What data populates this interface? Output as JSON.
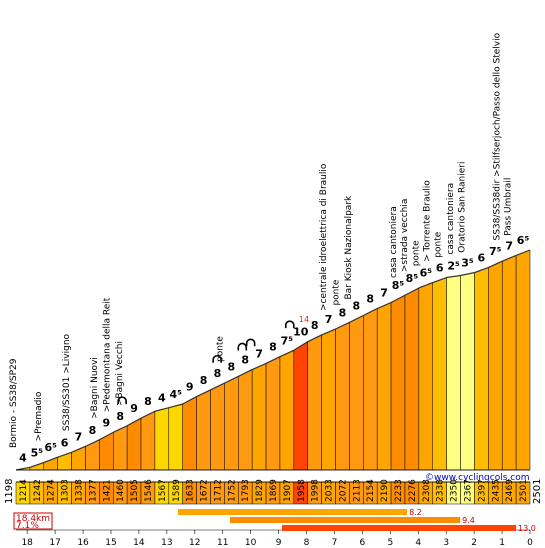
{
  "chart_data": {
    "type": "area",
    "title": "",
    "xlabel": "",
    "ylabel": "",
    "x_unit": "km",
    "xlim": [
      18.4,
      0
    ],
    "ylim": [
      1198,
      2501
    ],
    "start_elevation": "1198",
    "end_elevation": "2501",
    "summary": {
      "distance": "18.4km",
      "average_gradient": "7.1%"
    },
    "website": "©www.cyclingcols.com",
    "km_ticks": [
      "18",
      "17",
      "16",
      "15",
      "14",
      "13",
      "12",
      "11",
      "10",
      "9",
      "8",
      "7",
      "6",
      "5",
      "4",
      "3",
      "2",
      "1",
      "0"
    ],
    "segments": [
      {
        "elev_end": "1214",
        "grad": "4"
      },
      {
        "elev_end": "1242",
        "grad": "5⁵"
      },
      {
        "elev_end": "1274",
        "grad": "6⁵"
      },
      {
        "elev_end": "1303",
        "grad": "6"
      },
      {
        "elev_end": "1338",
        "grad": "7"
      },
      {
        "elev_end": "1377",
        "grad": "8"
      },
      {
        "elev_end": "1421",
        "grad": "9"
      },
      {
        "elev_end": "1460",
        "grad": "8"
      },
      {
        "elev_end": "1505",
        "grad": "9"
      },
      {
        "elev_end": "1546",
        "grad": "8"
      },
      {
        "elev_end": "1567",
        "grad": "4"
      },
      {
        "elev_end": "1589",
        "grad": "4⁵"
      },
      {
        "elev_end": "1633",
        "grad": "9"
      },
      {
        "elev_end": "1672",
        "grad": "8"
      },
      {
        "elev_end": "1712",
        "grad": "8"
      },
      {
        "elev_end": "1752",
        "grad": "8"
      },
      {
        "elev_end": "1793",
        "grad": "8"
      },
      {
        "elev_end": "1829",
        "grad": "7"
      },
      {
        "elev_end": "1869",
        "grad": "8"
      },
      {
        "elev_end": "1907",
        "grad": "7⁵"
      },
      {
        "elev_end": "1958",
        "grad": "10"
      },
      {
        "elev_end": "1998",
        "grad": "8"
      },
      {
        "elev_end": "2033",
        "grad": "7"
      },
      {
        "elev_end": "2072",
        "grad": "8"
      },
      {
        "elev_end": "2113",
        "grad": "8"
      },
      {
        "elev_end": "2154",
        "grad": "8"
      },
      {
        "elev_end": "2190",
        "grad": "7"
      },
      {
        "elev_end": "2233",
        "grad": "8⁵"
      },
      {
        "elev_end": "2276",
        "grad": "8⁵"
      },
      {
        "elev_end": "2308",
        "grad": "6⁵"
      },
      {
        "elev_end": "2338",
        "grad": "6"
      },
      {
        "elev_end": "2350",
        "grad": "2⁵"
      },
      {
        "elev_end": "2367",
        "grad": "3⁵"
      },
      {
        "elev_end": "2397",
        "grad": "6"
      },
      {
        "elev_end": "2435",
        "grad": "7⁵"
      },
      {
        "elev_end": "2469",
        "grad": "7"
      },
      {
        "elev_end": "2501",
        "grad": "6⁵"
      }
    ],
    "peak_marker": "14",
    "landmarks": [
      {
        "km": 18.4,
        "text": "Bormio - SS38/SP29"
      },
      {
        "km": 17.5,
        "text": ">Premadio"
      },
      {
        "km": 16.5,
        "text": "SS38/SS301 >Livigno"
      },
      {
        "km": 15.5,
        "text": ">Bagni Nuovi"
      },
      {
        "km": 15.05,
        "text": ">Pedemontana della Reit"
      },
      {
        "km": 14.6,
        "text": ">Bagni Vecchi"
      },
      {
        "km": 11.0,
        "text": "ponte"
      },
      {
        "km": 7.3,
        "text": ">centrale idroelettrica di Braulio"
      },
      {
        "km": 6.85,
        "text": "ponte"
      },
      {
        "km": 6.4,
        "text": "Bar Kiosk Nazionalpark"
      },
      {
        "km": 4.8,
        "text": "casa cantoniera"
      },
      {
        "km": 4.4,
        "text": ">strada vecchia"
      },
      {
        "km": 4.0,
        "text": "ponte"
      },
      {
        "km": 3.6,
        "text": "> Torrente Braulio"
      },
      {
        "km": 3.2,
        "text": "ponte"
      },
      {
        "km": 2.75,
        "text": "casa cantoniera"
      },
      {
        "km": 2.35,
        "text": "Oratorio San Ranieri"
      },
      {
        "km": 1.1,
        "text": "SS38/SS38dir >Stilfserjoch/Passo dello Stelvio"
      },
      {
        "km": 0.7,
        "text": "Pass Umbrail"
      }
    ],
    "tunnels": [
      {
        "km": 14.6
      },
      {
        "km": 11.2
      },
      {
        "km": 10.3
      },
      {
        "km": 10.0
      },
      {
        "km": 8.6
      }
    ],
    "legend_bars": [
      {
        "value": "8.2",
        "km": 4.4,
        "color": "#FFA500"
      },
      {
        "value": "9.4",
        "km": 2.5,
        "color": "#FF8C00"
      },
      {
        "value": "13.0",
        "km": 0.5,
        "color": "#FF4500"
      }
    ]
  }
}
